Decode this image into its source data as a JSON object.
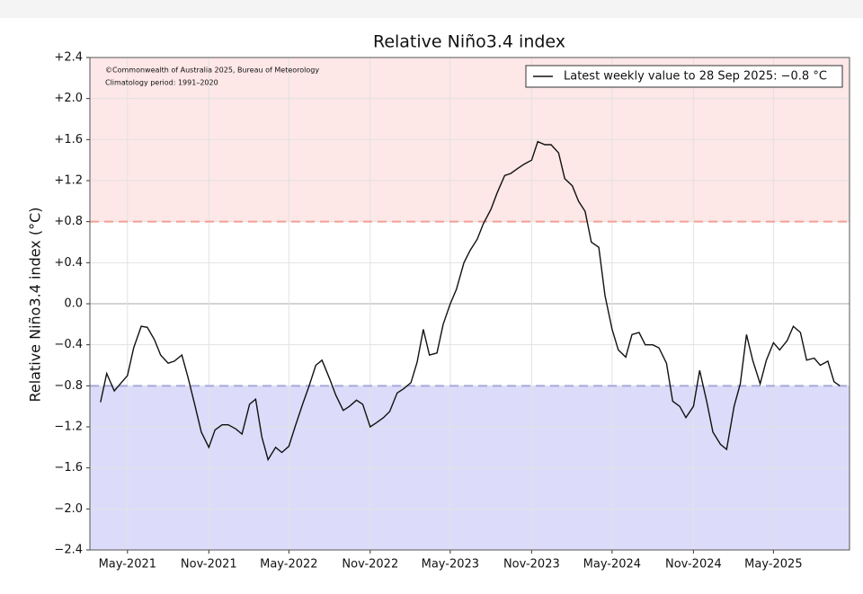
{
  "chart_data": {
    "type": "line",
    "title": "Relative Niño3.4 index",
    "y_label": "Relative Niño3.4 index (°C)",
    "annotations": [
      "©Commonwealth of Australia 2025, Bureau of Meteorology",
      "Climatology period: 1991–2020"
    ],
    "legend": "upper right",
    "grid": true,
    "xlim": [
      "2021-02-05",
      "2025-10-20"
    ],
    "xticks": [
      {
        "value": "2021-05-01",
        "label": "May-2021"
      },
      {
        "value": "2021-11-01",
        "label": "Nov-2021"
      },
      {
        "value": "2022-05-01",
        "label": "May-2022"
      },
      {
        "value": "2022-11-01",
        "label": "Nov-2022"
      },
      {
        "value": "2023-05-01",
        "label": "May-2023"
      },
      {
        "value": "2023-11-01",
        "label": "Nov-2023"
      },
      {
        "value": "2024-05-01",
        "label": "May-2024"
      },
      {
        "value": "2024-11-01",
        "label": "Nov-2024"
      },
      {
        "value": "2025-05-01",
        "label": "May-2025"
      }
    ],
    "ylim": [
      -2.4,
      2.4
    ],
    "yticks": [
      {
        "value": 2.4,
        "label": "+2.4"
      },
      {
        "value": 2.0,
        "label": "+2.0"
      },
      {
        "value": 1.6,
        "label": "+1.6"
      },
      {
        "value": 1.2,
        "label": "+1.2"
      },
      {
        "value": 0.8,
        "label": "+0.8"
      },
      {
        "value": 0.4,
        "label": "+0.4"
      },
      {
        "value": 0,
        "label": "0.0"
      },
      {
        "value": -0.4,
        "label": "−0.4"
      },
      {
        "value": -0.8,
        "label": "−0.8"
      },
      {
        "value": -1.2,
        "label": "−1.2"
      },
      {
        "value": -1.6,
        "label": "−1.6"
      },
      {
        "value": -2.0,
        "label": "−2.0"
      },
      {
        "value": -2.4,
        "label": "−2.4"
      }
    ],
    "thresholds": [
      {
        "value": 0.8,
        "line_color": "#f0a096",
        "fill": "#fde7e7"
      },
      {
        "value": -0.8,
        "line_color": "#a8a8dc",
        "fill": "#dcdcfa"
      }
    ],
    "x": [
      "2021-03-01",
      "2021-03-15",
      "2021-04-01",
      "2021-04-15",
      "2021-05-01",
      "2021-05-15",
      "2021-06-01",
      "2021-06-15",
      "2021-07-01",
      "2021-07-15",
      "2021-08-01",
      "2021-08-15",
      "2021-09-01",
      "2021-09-15",
      "2021-10-01",
      "2021-10-15",
      "2021-11-01",
      "2021-11-15",
      "2021-12-01",
      "2021-12-15",
      "2022-01-01",
      "2022-01-15",
      "2022-02-01",
      "2022-02-15",
      "2022-03-01",
      "2022-03-15",
      "2022-04-01",
      "2022-04-15",
      "2022-05-01",
      "2022-05-15",
      "2022-06-01",
      "2022-06-15",
      "2022-07-01",
      "2022-07-15",
      "2022-08-01",
      "2022-08-15",
      "2022-09-01",
      "2022-09-15",
      "2022-10-01",
      "2022-10-15",
      "2022-11-01",
      "2022-11-15",
      "2022-12-01",
      "2022-12-15",
      "2023-01-01",
      "2023-01-15",
      "2023-02-01",
      "2023-02-15",
      "2023-03-01",
      "2023-03-15",
      "2023-04-01",
      "2023-04-15",
      "2023-05-01",
      "2023-05-15",
      "2023-06-01",
      "2023-06-15",
      "2023-07-01",
      "2023-07-15",
      "2023-08-01",
      "2023-08-15",
      "2023-09-01",
      "2023-09-15",
      "2023-10-01",
      "2023-10-15",
      "2023-11-01",
      "2023-11-15",
      "2023-12-01",
      "2023-12-15",
      "2024-01-01",
      "2024-01-15",
      "2024-02-01",
      "2024-02-15",
      "2024-03-01",
      "2024-03-15",
      "2024-04-01",
      "2024-04-15",
      "2024-05-01",
      "2024-05-15",
      "2024-06-01",
      "2024-06-15",
      "2024-07-01",
      "2024-07-15",
      "2024-08-01",
      "2024-08-15",
      "2024-09-01",
      "2024-09-15",
      "2024-10-01",
      "2024-10-15",
      "2024-11-01",
      "2024-11-15",
      "2024-12-01",
      "2024-12-15",
      "2025-01-01",
      "2025-01-15",
      "2025-02-01",
      "2025-02-15",
      "2025-03-01",
      "2025-03-15",
      "2025-04-01",
      "2025-04-15",
      "2025-05-01",
      "2025-05-15",
      "2025-06-01",
      "2025-06-15",
      "2025-07-01",
      "2025-07-15",
      "2025-08-01",
      "2025-08-15",
      "2025-09-01",
      "2025-09-15",
      "2025-09-28"
    ],
    "series": [
      {
        "name": "Latest weekly value to 28 Sep 2025: −0.8 °C",
        "color": "#111111",
        "values": [
          -0.96,
          -0.68,
          -0.85,
          -0.78,
          -0.7,
          -0.43,
          -0.22,
          -0.23,
          -0.35,
          -0.5,
          -0.58,
          -0.56,
          -0.5,
          -0.72,
          -1.0,
          -1.25,
          -1.4,
          -1.23,
          -1.18,
          -1.18,
          -1.22,
          -1.27,
          -0.98,
          -0.93,
          -1.3,
          -1.52,
          -1.4,
          -1.45,
          -1.39,
          -1.2,
          -0.98,
          -0.81,
          -0.6,
          -0.55,
          -0.73,
          -0.89,
          -1.04,
          -1.0,
          -0.94,
          -0.98,
          -1.2,
          -1.16,
          -1.11,
          -1.05,
          -0.87,
          -0.83,
          -0.77,
          -0.57,
          -0.25,
          -0.5,
          -0.48,
          -0.2,
          0.0,
          0.14,
          0.4,
          0.52,
          0.63,
          0.78,
          0.92,
          1.08,
          1.25,
          1.27,
          1.32,
          1.36,
          1.4,
          1.58,
          1.55,
          1.55,
          1.47,
          1.22,
          1.15,
          1.0,
          0.9,
          0.6,
          0.55,
          0.08,
          -0.25,
          -0.45,
          -0.52,
          -0.3,
          -0.28,
          -0.4,
          -0.4,
          -0.43,
          -0.58,
          -0.95,
          -1.0,
          -1.11,
          -1.0,
          -0.65,
          -0.95,
          -1.25,
          -1.37,
          -1.42,
          -1.0,
          -0.78,
          -0.3,
          -0.55,
          -0.78,
          -0.55,
          -0.38,
          -0.45,
          -0.36,
          -0.22,
          -0.28,
          -0.55,
          -0.53,
          -0.6,
          -0.56,
          -0.76,
          -0.8
        ]
      }
    ]
  }
}
